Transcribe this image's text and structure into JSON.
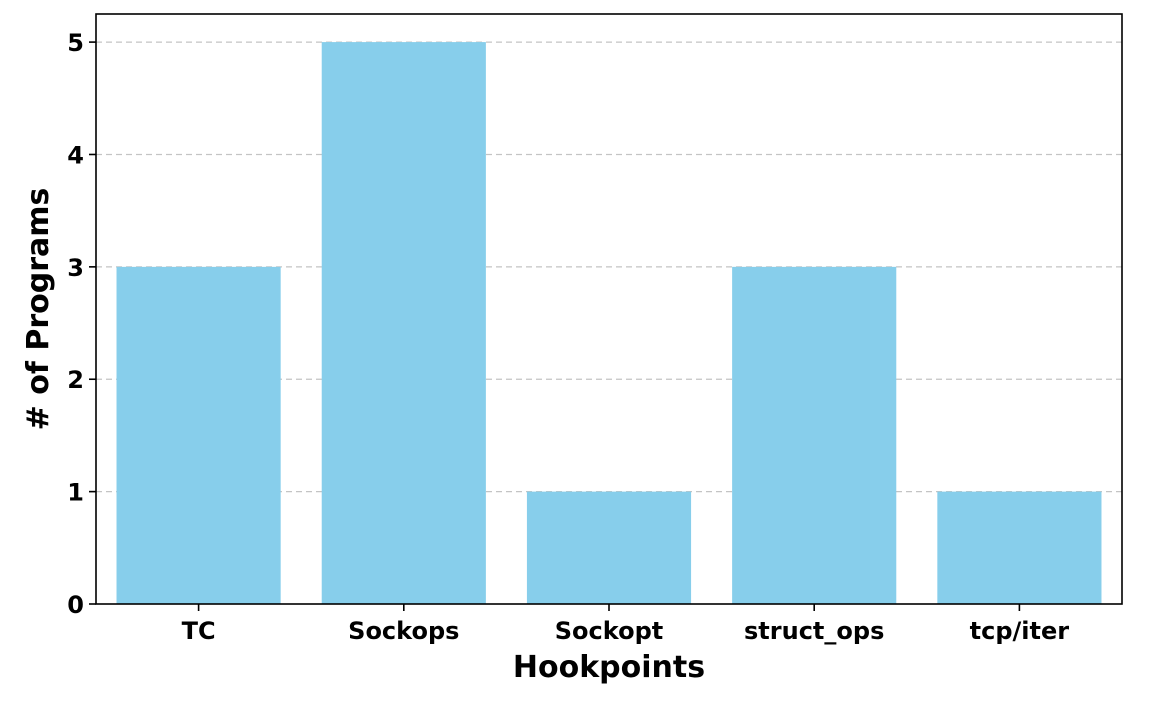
{
  "chart_data": {
    "type": "bar",
    "categories": [
      "TC",
      "Sockops",
      "Sockopt",
      "struct_ops",
      "tcp/iter"
    ],
    "values": [
      3,
      5,
      1,
      3,
      1
    ],
    "title": "",
    "xlabel": "Hookpoints",
    "ylabel": "# of Programs",
    "ylim": [
      0,
      5.25
    ],
    "yticks": [
      0,
      1,
      2,
      3,
      4,
      5
    ],
    "grid": "y-axis dashed",
    "bar_color": "#87CEEB"
  }
}
